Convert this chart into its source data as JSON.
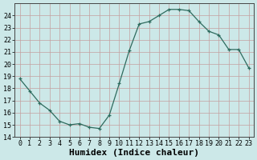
{
  "x": [
    0,
    1,
    2,
    3,
    4,
    5,
    6,
    7,
    8,
    9,
    10,
    11,
    12,
    13,
    14,
    15,
    16,
    17,
    18,
    19,
    20,
    21,
    22,
    23
  ],
  "y": [
    18.8,
    17.8,
    16.8,
    16.2,
    15.3,
    15.0,
    15.1,
    14.8,
    14.7,
    15.8,
    18.4,
    21.1,
    23.3,
    23.5,
    24.0,
    24.5,
    24.5,
    24.4,
    23.5,
    22.7,
    22.4,
    21.2,
    21.2,
    19.7
  ],
  "xlabel": "Humidex (Indice chaleur)",
  "ylim": [
    14,
    25
  ],
  "xlim": [
    -0.5,
    23.5
  ],
  "yticks": [
    14,
    15,
    16,
    17,
    18,
    19,
    20,
    21,
    22,
    23,
    24
  ],
  "xticks": [
    0,
    1,
    2,
    3,
    4,
    5,
    6,
    7,
    8,
    9,
    10,
    11,
    12,
    13,
    14,
    15,
    16,
    17,
    18,
    19,
    20,
    21,
    22,
    23
  ],
  "line_color": "#2e6b5e",
  "marker": "+",
  "bg_color": "#cce8e8",
  "grid_color_major": "#c4a0a0",
  "tick_fontsize": 6,
  "xlabel_fontsize": 8
}
